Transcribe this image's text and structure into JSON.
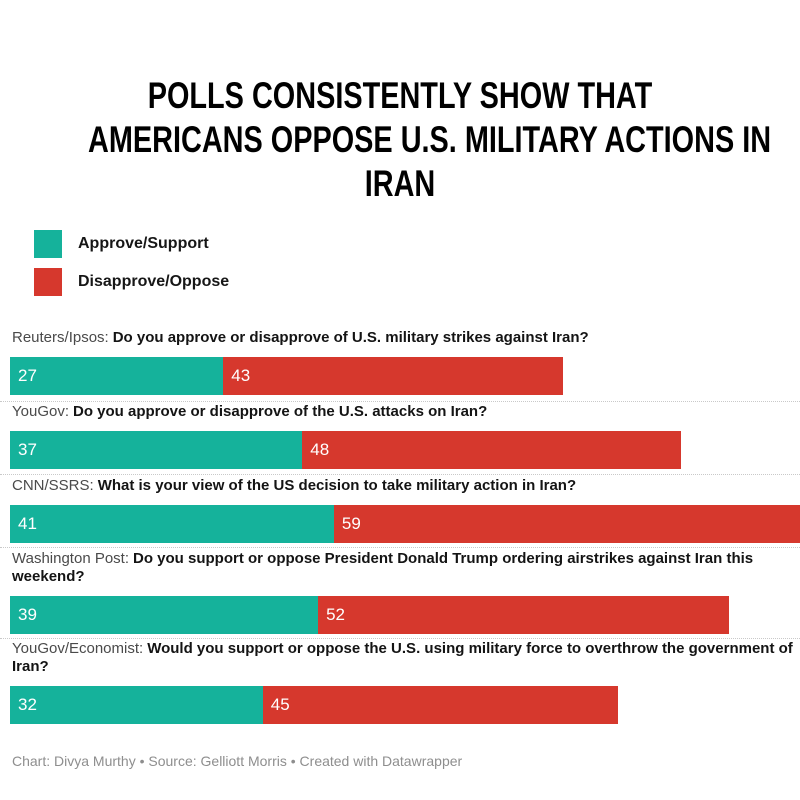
{
  "title": {
    "lines": [
      "POLLS CONSISTENTLY SHOW THAT",
      "AMERICANS OPPOSE U.S. MILITARY ACTIONS IN",
      "IRAN"
    ]
  },
  "colors": {
    "approve": "#15b29b",
    "disapprove": "#d6382d",
    "title": "#000000",
    "footer_text": "#8e8e8e"
  },
  "legend": {
    "items": [
      {
        "label": "Approve/Support",
        "color": "#15b29b"
      },
      {
        "label": "Disapprove/Oppose",
        "color": "#d6382d"
      }
    ]
  },
  "rows": [
    {
      "source": "Reuters/Ipsos:",
      "question": "Do you approve or disapprove of U.S. military strikes against Iran?",
      "approve": 27,
      "disapprove": 43
    },
    {
      "source": "YouGov:",
      "question": "Do you approve or disapprove of the U.S. attacks on Iran?",
      "approve": 37,
      "disapprove": 48
    },
    {
      "source": "CNN/SSRS:",
      "question": "What is your view of the US decision to take military action in Iran?",
      "approve": 41,
      "disapprove": 59
    },
    {
      "source": "Washington Post:",
      "question": "Do you support or oppose President Donald Trump ordering airstrikes against Iran this weekend?",
      "approve": 39,
      "disapprove": 52
    },
    {
      "source": "YouGov/Economist:",
      "question": "Would you support or oppose the U.S. using military force to overthrow the government of Iran?",
      "approve": 32,
      "disapprove": 45
    }
  ],
  "chart_data": {
    "type": "bar",
    "orientation": "horizontal",
    "stacked": true,
    "title": "POLLS CONSISTENTLY SHOW THAT AMERICANS OPPOSE U.S. MILITARY ACTIONS IN IRAN",
    "categories": [
      "Reuters/Ipsos: Do you approve or disapprove of U.S. military strikes against Iran?",
      "YouGov: Do you approve or disapprove of the U.S. attacks on Iran?",
      "CNN/SSRS: What is your view of the US decision to take military action in Iran?",
      "Washington Post: Do you support or oppose President Donald Trump ordering airstrikes against Iran this weekend?",
      "YouGov/Economist: Would you support or oppose the U.S. using military force to overthrow the government of Iran?"
    ],
    "series": [
      {
        "name": "Approve/Support",
        "color": "#15b29b",
        "values": [
          27,
          37,
          41,
          39,
          32
        ]
      },
      {
        "name": "Disapprove/Oppose",
        "color": "#d6382d",
        "values": [
          43,
          48,
          59,
          52,
          45
        ]
      }
    ],
    "xlim": [
      0,
      100
    ],
    "value_labels": "inside-left, white",
    "grid": false,
    "legend_position": "top-left"
  },
  "footer": {
    "text": "Chart: Divya Murthy • Source: Gelliott Morris • Created with Datawrapper"
  }
}
